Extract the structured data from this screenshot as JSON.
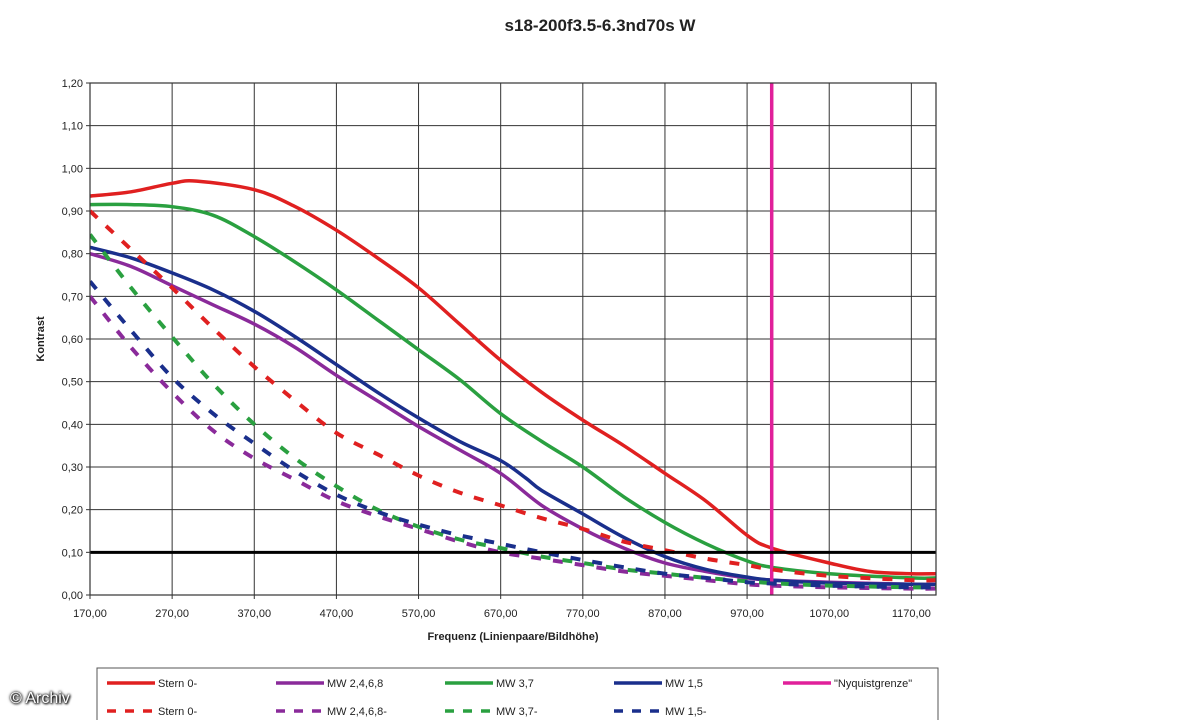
{
  "chart_data": {
    "type": "line",
    "title": "s18-200f3.5-6.3nd70s W",
    "xlabel": "Frequenz (Linienpaare/Bildhöhe)",
    "ylabel": "Kontrast",
    "xlim": [
      170,
      1200
    ],
    "ylim": [
      0,
      1.2
    ],
    "x_ticks": [
      "170,00",
      "270,00",
      "370,00",
      "470,00",
      "570,00",
      "670,00",
      "770,00",
      "870,00",
      "970,00",
      "1070,00",
      "1170,00"
    ],
    "x_tick_values": [
      170,
      270,
      370,
      470,
      570,
      670,
      770,
      870,
      970,
      1070,
      1170
    ],
    "y_ticks": [
      "0,00",
      "0,10",
      "0,20",
      "0,30",
      "0,40",
      "0,50",
      "0,60",
      "0,70",
      "0,80",
      "0,90",
      "1,00",
      "1,10",
      "1,20"
    ],
    "y_tick_values": [
      0,
      0.1,
      0.2,
      0.3,
      0.4,
      0.5,
      0.6,
      0.7,
      0.8,
      0.9,
      1.0,
      1.1,
      1.2
    ],
    "grid": true,
    "legend_position": "bottom",
    "reference_lines": [
      {
        "axis": "y",
        "value": 0.1,
        "color": "#000000"
      }
    ],
    "series": [
      {
        "name": "Stern 0-",
        "color": "#e02020",
        "dashed": false,
        "x": [
          170,
          220,
          270,
          300,
          370,
          420,
          470,
          520,
          570,
          620,
          670,
          720,
          770,
          820,
          870,
          920,
          970,
          1000,
          1070,
          1120,
          1170,
          1200
        ],
        "y": [
          0.935,
          0.945,
          0.965,
          0.97,
          0.95,
          0.91,
          0.855,
          0.79,
          0.72,
          0.635,
          0.55,
          0.475,
          0.41,
          0.35,
          0.285,
          0.22,
          0.14,
          0.11,
          0.075,
          0.055,
          0.05,
          0.05
        ]
      },
      {
        "name": "MW 2,4,6,8",
        "color": "#8a2a9a",
        "dashed": false,
        "x": [
          170,
          220,
          270,
          320,
          370,
          420,
          470,
          520,
          570,
          620,
          670,
          720,
          770,
          820,
          870,
          920,
          970,
          1000,
          1070,
          1170,
          1200
        ],
        "y": [
          0.8,
          0.77,
          0.725,
          0.68,
          0.635,
          0.58,
          0.515,
          0.455,
          0.395,
          0.34,
          0.285,
          0.21,
          0.155,
          0.11,
          0.075,
          0.055,
          0.04,
          0.035,
          0.03,
          0.025,
          0.025
        ]
      },
      {
        "name": "MW 3,7",
        "color": "#2aa040",
        "dashed": false,
        "x": [
          170,
          220,
          270,
          320,
          370,
          420,
          470,
          520,
          570,
          620,
          670,
          720,
          770,
          820,
          870,
          920,
          970,
          1000,
          1070,
          1170,
          1200
        ],
        "y": [
          0.915,
          0.915,
          0.91,
          0.89,
          0.84,
          0.78,
          0.715,
          0.645,
          0.575,
          0.505,
          0.425,
          0.36,
          0.3,
          0.23,
          0.17,
          0.12,
          0.08,
          0.065,
          0.05,
          0.04,
          0.04
        ]
      },
      {
        "name": "MW 1,5",
        "color": "#1a2f8c",
        "dashed": false,
        "x": [
          170,
          220,
          270,
          320,
          370,
          420,
          470,
          520,
          570,
          620,
          670,
          700,
          720,
          770,
          820,
          870,
          920,
          970,
          1000,
          1070,
          1170,
          1200
        ],
        "y": [
          0.815,
          0.79,
          0.755,
          0.715,
          0.665,
          0.605,
          0.54,
          0.475,
          0.415,
          0.36,
          0.315,
          0.275,
          0.245,
          0.19,
          0.135,
          0.09,
          0.06,
          0.042,
          0.035,
          0.028,
          0.025,
          0.025
        ]
      },
      {
        "name": "\"Nyquistgrenze\"",
        "color": "#e0209a",
        "dashed": false,
        "x": [
          1000,
          1000
        ],
        "y": [
          0,
          1.2
        ]
      },
      {
        "name": "Stern 0-",
        "color": "#e02020",
        "dashed": true,
        "x": [
          170,
          220,
          270,
          320,
          370,
          420,
          470,
          520,
          570,
          620,
          670,
          720,
          770,
          820,
          870,
          920,
          970,
          1000,
          1070,
          1170,
          1200
        ],
        "y": [
          0.9,
          0.81,
          0.72,
          0.625,
          0.535,
          0.455,
          0.38,
          0.33,
          0.28,
          0.24,
          0.21,
          0.18,
          0.155,
          0.125,
          0.105,
          0.085,
          0.07,
          0.06,
          0.045,
          0.035,
          0.035
        ]
      },
      {
        "name": "MW 2,4,6,8-",
        "color": "#8a2a9a",
        "dashed": true,
        "x": [
          170,
          220,
          270,
          320,
          370,
          420,
          470,
          520,
          570,
          620,
          670,
          720,
          770,
          820,
          870,
          920,
          970,
          1000,
          1070,
          1170,
          1200
        ],
        "y": [
          0.7,
          0.58,
          0.475,
          0.385,
          0.32,
          0.27,
          0.22,
          0.185,
          0.155,
          0.125,
          0.1,
          0.085,
          0.07,
          0.055,
          0.045,
          0.035,
          0.025,
          0.022,
          0.018,
          0.015,
          0.015
        ]
      },
      {
        "name": "MW 3,7-",
        "color": "#2aa040",
        "dashed": true,
        "x": [
          170,
          220,
          270,
          320,
          370,
          420,
          470,
          520,
          570,
          620,
          670,
          720,
          770,
          820,
          870,
          920,
          970,
          1000,
          1070,
          1170,
          1200
        ],
        "y": [
          0.845,
          0.72,
          0.605,
          0.495,
          0.4,
          0.32,
          0.255,
          0.2,
          0.16,
          0.13,
          0.11,
          0.09,
          0.075,
          0.06,
          0.05,
          0.04,
          0.032,
          0.028,
          0.022,
          0.018,
          0.018
        ]
      },
      {
        "name": "MW 1,5-",
        "color": "#1a2f8c",
        "dashed": true,
        "x": [
          170,
          220,
          270,
          320,
          370,
          420,
          470,
          520,
          570,
          620,
          670,
          720,
          770,
          820,
          870,
          920,
          970,
          1000,
          1070,
          1170,
          1200
        ],
        "y": [
          0.735,
          0.62,
          0.51,
          0.425,
          0.355,
          0.29,
          0.235,
          0.195,
          0.165,
          0.14,
          0.12,
          0.1,
          0.082,
          0.065,
          0.05,
          0.04,
          0.03,
          0.027,
          0.022,
          0.018,
          0.018
        ]
      }
    ]
  },
  "credit": "© Archiv"
}
